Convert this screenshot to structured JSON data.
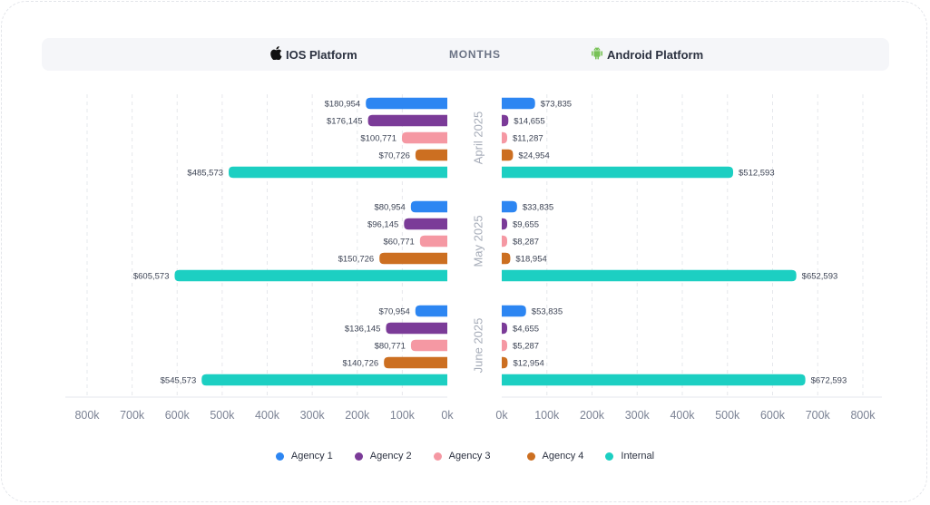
{
  "header": {
    "ios_label": "IOS Platform",
    "months_label": "MONTHS",
    "android_label": "Android Platform",
    "ios_icon": "apple-icon",
    "android_icon": "android-icon"
  },
  "chart_data": {
    "type": "bar",
    "orientation": "horizontal-butterfly",
    "left_panel": "IOS Platform",
    "right_panel": "Android Platform",
    "center_label": "MONTHS",
    "categories": [
      "April 2025",
      "May 2025",
      "June 2025"
    ],
    "series_names": [
      "Agency 1",
      "Agency 2",
      "Agency 3",
      "Agency 4",
      "Internal"
    ],
    "colors": {
      "Agency 1": "#2d86f2",
      "Agency 2": "#7b3b98",
      "Agency 3": "#f598a3",
      "Agency 4": "#cc6f21",
      "Internal": "#1ccfc2"
    },
    "ios": {
      "April 2025": [
        180954,
        176145,
        100771,
        70726,
        485573
      ],
      "May 2025": [
        80954,
        96145,
        60771,
        150726,
        605573
      ],
      "June 2025": [
        70954,
        136145,
        80771,
        140726,
        545573
      ]
    },
    "android": {
      "April 2025": [
        73835,
        14655,
        11287,
        24954,
        512593
      ],
      "May 2025": [
        33835,
        9655,
        8287,
        18954,
        652593
      ],
      "June 2025": [
        53835,
        4655,
        5287,
        12954,
        672593
      ]
    },
    "ios_labels": {
      "April 2025": [
        "$180,954",
        "$176,145",
        "$100,771",
        "$70,726",
        "$485,573"
      ],
      "May 2025": [
        "$80,954",
        "$96,145",
        "$60,771",
        "$150,726",
        "$605,573"
      ],
      "June 2025": [
        "$70,954",
        "$136,145",
        "$80,771",
        "$140,726",
        "$545,573"
      ]
    },
    "android_labels": {
      "April 2025": [
        "$73,835",
        "$14,655",
        "$11,287",
        "$24,954",
        "$512,593"
      ],
      "May 2025": [
        "$33,835",
        "$9,655",
        "$8,287",
        "$18,954",
        "$652,593"
      ],
      "June 2025": [
        "$53,835",
        "$4,655",
        "$5,287",
        "$12,954",
        "$672,593"
      ]
    },
    "xlim": [
      0,
      800000
    ],
    "ios_ticks": [
      "800k",
      "700k",
      "600k",
      "500k",
      "400k",
      "300k",
      "200k",
      "100k",
      "0k"
    ],
    "android_ticks": [
      "0k",
      "100k",
      "200k",
      "300k",
      "400k",
      "500k",
      "600k",
      "700k",
      "800k"
    ],
    "grid": true,
    "legend_position": "bottom-center"
  },
  "legend": [
    {
      "label": "Agency 1",
      "color": "#2d86f2"
    },
    {
      "label": "Agency 2",
      "color": "#7b3b98"
    },
    {
      "label": "Agency 3",
      "color": "#f598a3"
    },
    {
      "label": "Agency 4",
      "color": "#cc6f21"
    },
    {
      "label": "Internal",
      "color": "#1ccfc2"
    }
  ]
}
